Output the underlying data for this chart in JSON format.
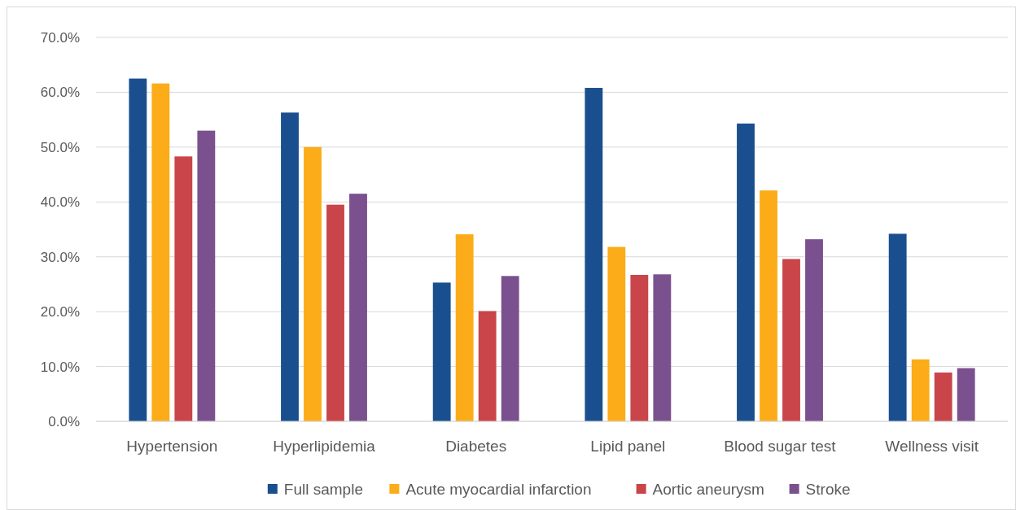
{
  "chart_data": {
    "type": "bar",
    "categories": [
      "Hypertension",
      "Hyperlipidemia",
      "Diabetes",
      "Lipid panel",
      "Blood sugar test",
      "Wellness visit"
    ],
    "series": [
      {
        "name": "Full sample",
        "color": "#1a4f8f",
        "values": [
          62.5,
          56.3,
          25.3,
          60.8,
          54.3,
          34.2
        ]
      },
      {
        "name": "Acute myocardial infarction",
        "color": "#fbac18",
        "values": [
          61.6,
          50.0,
          34.1,
          31.8,
          42.1,
          11.3
        ]
      },
      {
        "name": "Aortic aneurysm",
        "color": "#c9454a",
        "values": [
          48.3,
          39.5,
          20.1,
          26.7,
          29.6,
          8.9
        ]
      },
      {
        "name": "Stroke",
        "color": "#7a508f",
        "values": [
          53.0,
          41.5,
          26.5,
          26.8,
          33.2,
          9.7
        ]
      }
    ],
    "ylim": [
      0,
      70
    ],
    "yticks": [
      {
        "value": 0,
        "label": "0.0%"
      },
      {
        "value": 10,
        "label": "10.0%"
      },
      {
        "value": 20,
        "label": "20.0%"
      },
      {
        "value": 30,
        "label": "30.0%"
      },
      {
        "value": 40,
        "label": "40.0%"
      },
      {
        "value": 50,
        "label": "50.0%"
      },
      {
        "value": 60,
        "label": "60.0%"
      },
      {
        "value": 70,
        "label": "70.0%"
      }
    ],
    "grid": "y",
    "legend": "bottom"
  }
}
